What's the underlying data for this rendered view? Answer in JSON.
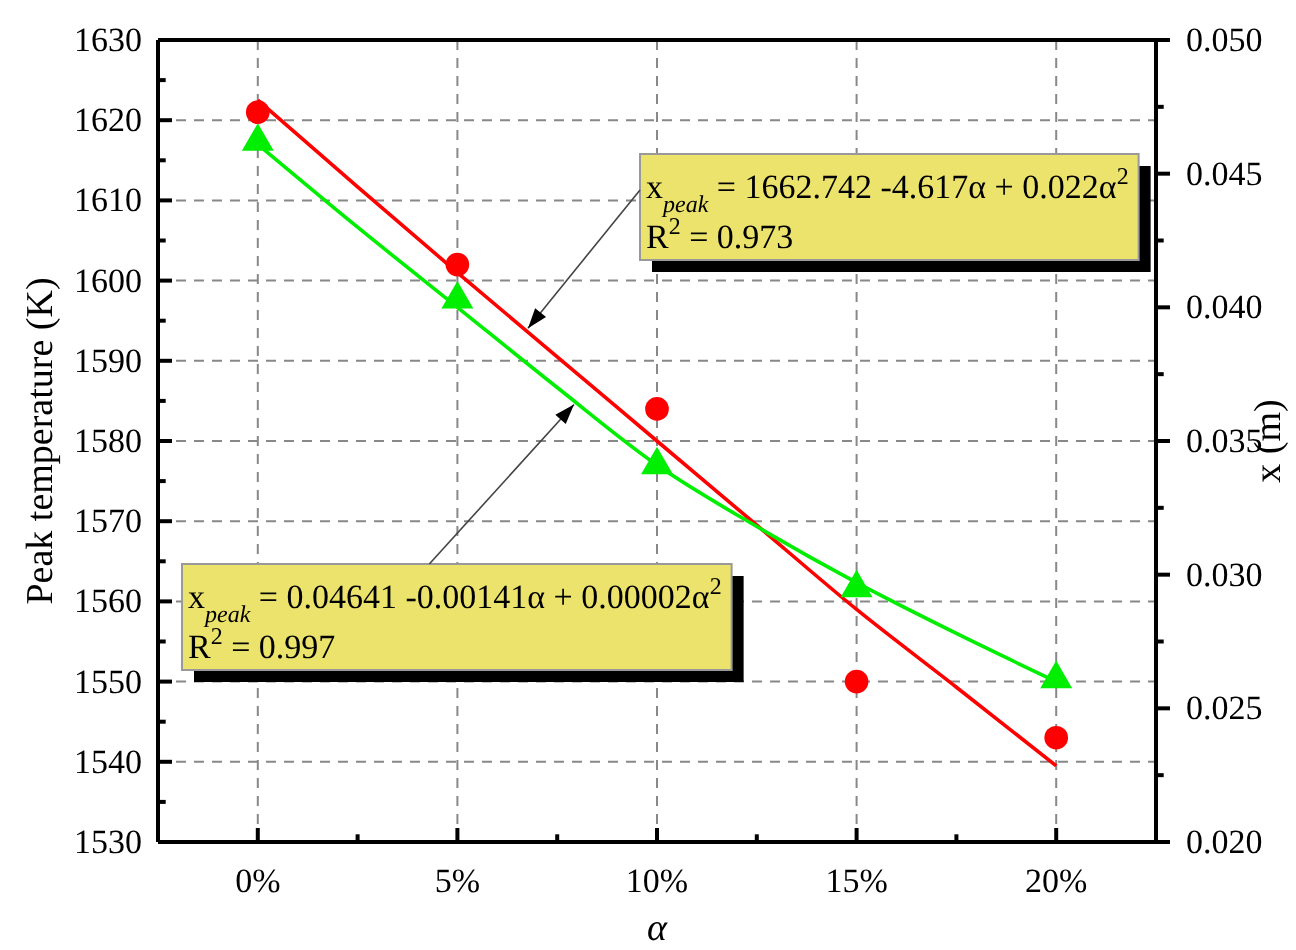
{
  "chart_data": {
    "type": "scatter",
    "xlabel": "α",
    "ylabel": "Peak temperature (K)",
    "y2label": "x (m)",
    "xlim": [
      -2.5,
      22.5
    ],
    "xticks": [
      {
        "value": 0,
        "label": "0%"
      },
      {
        "value": 2.5,
        "label": null
      },
      {
        "value": 5,
        "label": "5%"
      },
      {
        "value": 7.5,
        "label": null
      },
      {
        "value": 10,
        "label": "10%"
      },
      {
        "value": 12.5,
        "label": null
      },
      {
        "value": 15,
        "label": "15%"
      },
      {
        "value": 17.5,
        "label": null
      },
      {
        "value": 20,
        "label": "20%"
      }
    ],
    "ylim": [
      1530,
      1630
    ],
    "yticks": [
      1530,
      {
        "value": 1535,
        "label": null
      },
      1540,
      {
        "value": 1545,
        "label": null
      },
      1550,
      {
        "value": 1555,
        "label": null
      },
      1560,
      {
        "value": 1565,
        "label": null
      },
      1570,
      {
        "value": 1575,
        "label": null
      },
      1580,
      {
        "value": 1585,
        "label": null
      },
      1590,
      {
        "value": 1595,
        "label": null
      },
      1600,
      {
        "value": 1605,
        "label": null
      },
      1610,
      {
        "value": 1615,
        "label": null
      },
      1620,
      {
        "value": 1625,
        "label": null
      },
      1630
    ],
    "y2lim": [
      0.02,
      0.05
    ],
    "y2ticks": [
      {
        "value": 0.02,
        "label": "0.020"
      },
      {
        "value": 0.0225,
        "label": null
      },
      {
        "value": 0.025,
        "label": "0.025"
      },
      {
        "value": 0.0275,
        "label": null
      },
      {
        "value": 0.03,
        "label": "0.030"
      },
      {
        "value": 0.0325,
        "label": null
      },
      {
        "value": 0.035,
        "label": "0.035"
      },
      {
        "value": 0.0375,
        "label": null
      },
      {
        "value": 0.04,
        "label": "0.040"
      },
      {
        "value": 0.0425,
        "label": null
      },
      {
        "value": 0.045,
        "label": "0.045"
      },
      {
        "value": 0.0475,
        "label": null
      },
      {
        "value": 0.05,
        "label": "0.050"
      }
    ],
    "grid": true,
    "series": [
      {
        "type": "scatter",
        "marker": "circle",
        "color": "#ff0000",
        "x": [
          0,
          5,
          10,
          15,
          20
        ],
        "values": [
          1621,
          1602,
          1584,
          1550,
          1543
        ]
      },
      {
        "type": "scatter",
        "marker": "triangle",
        "axis": "y2",
        "color": "#00ee00",
        "x": [
          0,
          5,
          10,
          15,
          20
        ],
        "values": [
          0.0462,
          0.0403,
          0.0341,
          0.0295,
          0.0261
        ]
      },
      {
        "type": "line",
        "color": "#ff0000",
        "x": [
          0,
          2.5,
          5,
          7.5,
          10,
          12.5,
          15,
          17.5,
          20
        ],
        "values": [
          1622.5,
          1611.7,
          1601,
          1590.5,
          1580,
          1569.5,
          1559,
          1549.3,
          1539.5
        ]
      },
      {
        "type": "line",
        "axis": "y2",
        "color": "#00ee00",
        "x": [
          0,
          2.5,
          5,
          7.5,
          10,
          12.5,
          15,
          17.5,
          20
        ],
        "values": [
          0.0461,
          0.043,
          0.04,
          0.037,
          0.0341,
          0.0318,
          0.0297,
          0.0278,
          0.026
        ]
      }
    ],
    "annotations": [
      "x$_{peak}$ = 1662.742 -4.617α + 0.022α$^{2}$\nR$^{2}$ = 0.973",
      "x$_{peak}$ = 0.04641 -0.00141α + 0.00002α$^{2}$\nR$^{2}$ = 0.997"
    ]
  }
}
